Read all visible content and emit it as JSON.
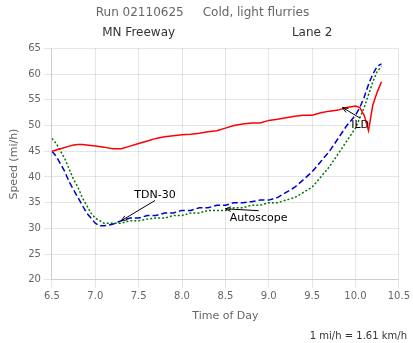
{
  "chart_data": {
    "type": "line",
    "title": "Run 02110625     Cold, light flurries",
    "subtitle": [
      "MN Freeway",
      "Lane 2"
    ],
    "xlabel": "Time of Day",
    "ylabel": "Speed (mi/h)",
    "footnote": "1 mi/h = 1.61 km/h",
    "xlim": [
      6.5,
      10.5
    ],
    "ylim": [
      20,
      65
    ],
    "xticks": [
      6.5,
      {
        "value": 7.0,
        "label": "7.0"
      },
      7.5,
      {
        "value": 8.0,
        "label": "8.0"
      },
      8.5,
      {
        "value": 9.0,
        "label": "9.0"
      },
      9.5,
      {
        "value": 10.0,
        "label": "10.0"
      },
      10.5
    ],
    "yticks": [
      20,
      25,
      30,
      35,
      40,
      45,
      50,
      55,
      60,
      65
    ],
    "grid": true,
    "series": [
      {
        "name": "ILD",
        "color": "#ff0000",
        "line_style": "solid",
        "x": [
          6.5,
          6.6,
          6.7,
          6.75,
          6.8,
          6.85,
          6.9,
          7.0,
          7.1,
          7.2,
          7.3,
          7.4,
          7.5,
          7.6,
          7.7,
          7.8,
          7.9,
          8.0,
          8.1,
          8.2,
          8.3,
          8.4,
          8.5,
          8.6,
          8.7,
          8.8,
          8.9,
          9.0,
          9.1,
          9.2,
          9.3,
          9.4,
          9.5,
          9.6,
          9.7,
          9.8,
          9.9,
          10.0,
          10.05,
          10.1,
          10.15,
          10.2,
          10.25,
          10.3
        ],
        "values": [
          45.0,
          45.5,
          46.0,
          46.2,
          46.3,
          46.3,
          46.2,
          46.0,
          45.8,
          45.5,
          45.5,
          46.0,
          46.5,
          47.0,
          47.5,
          47.8,
          48.0,
          48.2,
          48.3,
          48.5,
          48.8,
          49.0,
          49.5,
          50.0,
          50.3,
          50.5,
          50.5,
          51.0,
          51.2,
          51.5,
          51.8,
          52.0,
          52.0,
          52.5,
          52.8,
          53.0,
          53.5,
          53.8,
          53.5,
          52.0,
          49.0,
          54.0,
          56.5,
          58.5
        ]
      },
      {
        "name": "TDN-30",
        "color": "#0000cc",
        "line_style": "dashed",
        "x": [
          6.5,
          6.55,
          6.6,
          6.65,
          6.7,
          6.75,
          6.8,
          6.85,
          6.9,
          6.95,
          7.0,
          7.05,
          7.1,
          7.2,
          7.3,
          7.4,
          7.5,
          7.6,
          7.7,
          7.8,
          7.9,
          8.0,
          8.1,
          8.2,
          8.3,
          8.4,
          8.5,
          8.6,
          8.7,
          8.8,
          8.9,
          9.0,
          9.1,
          9.2,
          9.3,
          9.4,
          9.5,
          9.6,
          9.7,
          9.8,
          9.9,
          10.0,
          10.05,
          10.1,
          10.15,
          10.2,
          10.25,
          10.3
        ],
        "values": [
          45.0,
          44.0,
          42.5,
          41.0,
          39.0,
          37.5,
          36.0,
          34.5,
          33.0,
          32.0,
          31.0,
          30.5,
          30.5,
          30.8,
          31.5,
          32.0,
          32.0,
          32.5,
          32.5,
          33.0,
          33.0,
          33.5,
          33.5,
          34.0,
          34.0,
          34.5,
          34.5,
          35.0,
          35.0,
          35.2,
          35.5,
          35.5,
          36.0,
          37.0,
          38.0,
          39.5,
          41.0,
          43.0,
          45.0,
          47.5,
          50.0,
          52.0,
          53.5,
          55.5,
          58.0,
          60.0,
          61.5,
          62.0
        ]
      },
      {
        "name": "Autoscope",
        "color": "#007700",
        "line_style": "dotted",
        "x": [
          6.5,
          6.55,
          6.6,
          6.65,
          6.7,
          6.75,
          6.8,
          6.85,
          6.9,
          6.95,
          7.0,
          7.05,
          7.1,
          7.2,
          7.3,
          7.4,
          7.5,
          7.6,
          7.7,
          7.8,
          7.9,
          8.0,
          8.1,
          8.2,
          8.3,
          8.4,
          8.5,
          8.6,
          8.7,
          8.8,
          8.9,
          9.0,
          9.1,
          9.2,
          9.3,
          9.4,
          9.5,
          9.6,
          9.7,
          9.8,
          9.9,
          10.0,
          10.05,
          10.1,
          10.15,
          10.2,
          10.25,
          10.3
        ],
        "values": [
          47.5,
          46.5,
          45.0,
          43.5,
          41.5,
          39.5,
          38.0,
          36.0,
          34.5,
          33.0,
          32.0,
          31.5,
          31.0,
          31.0,
          31.0,
          31.5,
          31.5,
          31.8,
          32.0,
          32.0,
          32.5,
          32.5,
          33.0,
          33.0,
          33.5,
          33.5,
          33.5,
          34.0,
          34.0,
          34.5,
          34.5,
          35.0,
          35.0,
          35.5,
          36.0,
          37.0,
          38.0,
          40.0,
          42.0,
          44.5,
          47.0,
          49.5,
          51.5,
          53.5,
          56.0,
          58.5,
          60.5,
          61.5
        ]
      }
    ],
    "annotations": [
      {
        "text": "TDN-30",
        "x": 7.45,
        "y": 36.0,
        "arrow_to": [
          7.3,
          31.5
        ]
      },
      {
        "text": "Autoscope",
        "x": 8.55,
        "y": 31.5,
        "arrow_to": [
          8.5,
          33.8
        ]
      },
      {
        "text": "ILD",
        "x": 9.95,
        "y": 49.5,
        "arrow_to": [
          9.85,
          53.5
        ]
      }
    ]
  }
}
